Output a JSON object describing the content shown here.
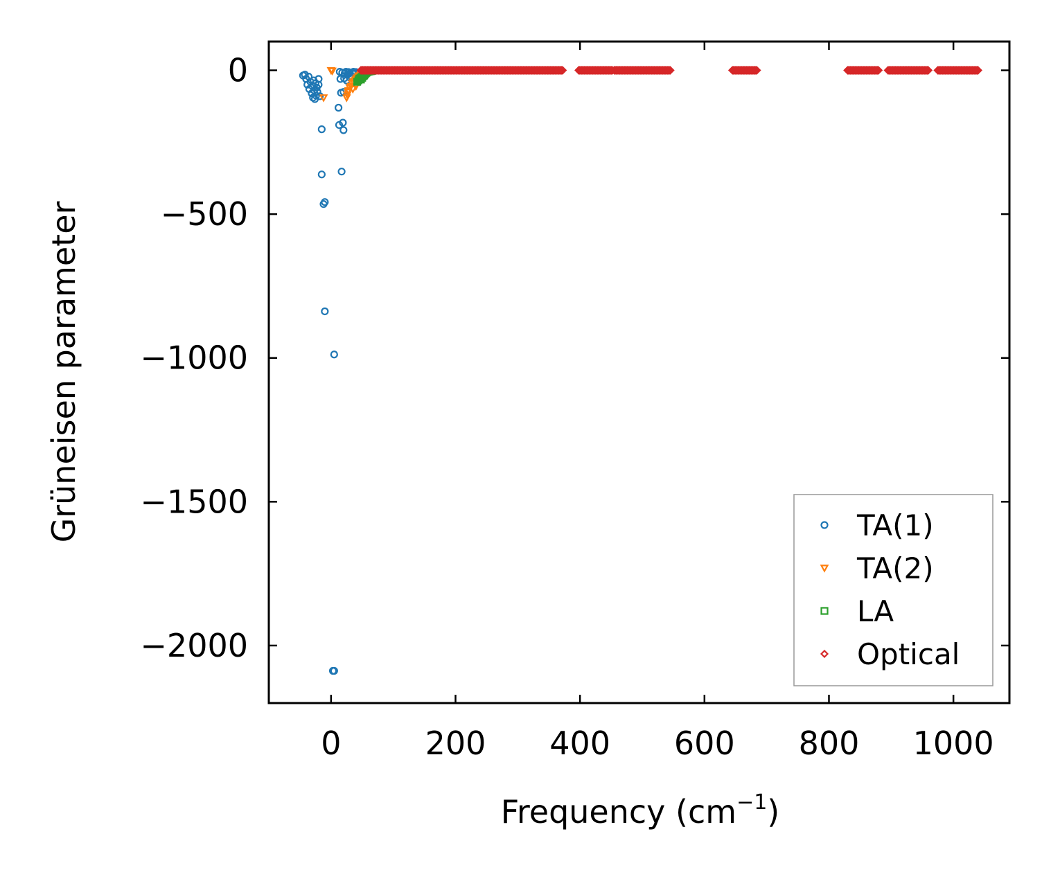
{
  "chart_data": {
    "type": "scatter",
    "title": "",
    "xlabel": "Frequency (cm",
    "xlabel_sup": "−1",
    "xlabel_suffix": ")",
    "ylabel": "Grüneisen parameter",
    "xlim": [
      -100,
      1090
    ],
    "ylim": [
      -2200,
      100
    ],
    "xticks": [
      0,
      200,
      400,
      600,
      800,
      1000
    ],
    "xtick_labels": [
      "0",
      "200",
      "400",
      "600",
      "800",
      "1000"
    ],
    "yticks": [
      0,
      -500,
      -1000,
      -1500,
      -2000
    ],
    "ytick_labels": [
      "0",
      "−500",
      "−1000",
      "−1500",
      "−2000"
    ],
    "grid": false,
    "legend_position": "bottom-right",
    "series": [
      {
        "name": "TA(1)",
        "color": "#1f77b4",
        "marker": "circle",
        "points": [
          [
            -45,
            -18
          ],
          [
            -42,
            -15
          ],
          [
            -40,
            -30
          ],
          [
            -38,
            -50
          ],
          [
            -36,
            -22
          ],
          [
            -35,
            -65
          ],
          [
            -33,
            -40
          ],
          [
            -31,
            -80
          ],
          [
            -30,
            -55
          ],
          [
            -29,
            -95
          ],
          [
            -28,
            -35
          ],
          [
            -27,
            -70
          ],
          [
            -26,
            -100
          ],
          [
            -25,
            -45
          ],
          [
            -24,
            -88
          ],
          [
            -23,
            -60
          ],
          [
            -22,
            -75
          ],
          [
            -20,
            -30
          ],
          [
            -20,
            -50
          ],
          [
            -18,
            -90
          ],
          [
            -15,
            -205
          ],
          [
            -15,
            -362
          ],
          [
            -12,
            -465
          ],
          [
            -10,
            -458
          ],
          [
            -10,
            -838
          ],
          [
            5,
            -988
          ],
          [
            5,
            -2088
          ],
          [
            3,
            -2088
          ],
          [
            12,
            -130
          ],
          [
            13,
            -190
          ],
          [
            15,
            -30
          ],
          [
            16,
            -78
          ],
          [
            17,
            -352
          ],
          [
            19,
            -182
          ],
          [
            20,
            -208
          ],
          [
            20,
            -75
          ],
          [
            14,
            -5
          ],
          [
            18,
            -8
          ],
          [
            22,
            -10
          ],
          [
            24,
            -5
          ],
          [
            26,
            -15
          ],
          [
            28,
            -6
          ],
          [
            30,
            -10
          ],
          [
            32,
            -20
          ],
          [
            34,
            -8
          ],
          [
            36,
            -5
          ],
          [
            38,
            -12
          ],
          [
            40,
            -6
          ],
          [
            25,
            -35
          ],
          [
            21,
            -28
          ],
          [
            30,
            -25
          ]
        ]
      },
      {
        "name": "TA(2)",
        "color": "#ff7f0e",
        "marker": "triangle-down",
        "points": [
          [
            0,
            0
          ],
          [
            2,
            -2
          ],
          [
            -12,
            -95
          ],
          [
            25,
            -95
          ],
          [
            26,
            -85
          ],
          [
            27,
            -75
          ],
          [
            28,
            -70
          ],
          [
            30,
            -60
          ],
          [
            32,
            -55
          ],
          [
            34,
            -45
          ],
          [
            36,
            -40
          ],
          [
            38,
            -35
          ],
          [
            40,
            -30
          ],
          [
            42,
            -25
          ],
          [
            44,
            -20
          ],
          [
            46,
            -18
          ],
          [
            48,
            -15
          ],
          [
            50,
            -12
          ],
          [
            52,
            -10
          ],
          [
            54,
            -8
          ],
          [
            56,
            -6
          ],
          [
            35,
            -65
          ],
          [
            40,
            -55
          ],
          [
            45,
            -40
          ]
        ]
      },
      {
        "name": "LA",
        "color": "#2ca02c",
        "marker": "square",
        "points": [
          [
            42,
            -40
          ],
          [
            44,
            -35
          ],
          [
            45,
            -30
          ],
          [
            46,
            -28
          ],
          [
            48,
            -25
          ],
          [
            50,
            -22
          ],
          [
            52,
            -20
          ],
          [
            53,
            -18
          ],
          [
            54,
            -15
          ],
          [
            55,
            -12
          ],
          [
            56,
            -10
          ],
          [
            57,
            -8
          ],
          [
            58,
            -6
          ],
          [
            60,
            -5
          ],
          [
            62,
            -4
          ],
          [
            64,
            -3
          ],
          [
            66,
            -2
          ],
          [
            48,
            -32
          ],
          [
            50,
            -26
          ],
          [
            52,
            -14
          ]
        ]
      },
      {
        "name": "Optical",
        "color": "#d62728",
        "marker": "diamond",
        "ranges": [
          [
            48,
            372
          ],
          [
            398,
            452
          ],
          [
            455,
            545
          ],
          [
            645,
            685
          ],
          [
            830,
            880
          ],
          [
            895,
            960
          ],
          [
            975,
            1040
          ]
        ],
        "step": 1.5,
        "value": 0
      }
    ]
  }
}
